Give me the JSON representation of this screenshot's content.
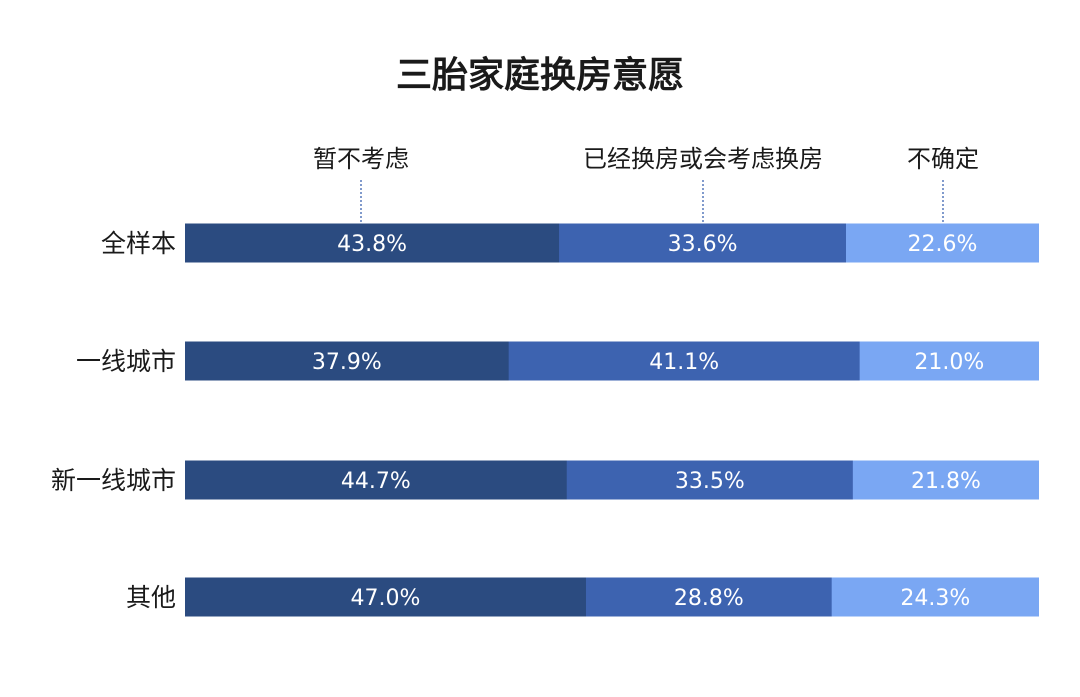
{
  "chart_data": {
    "type": "bar",
    "orientation": "horizontal",
    "stacked": true,
    "title": "三胎家庭换房意愿",
    "categories": [
      "全样本",
      "一线城市",
      "新一线城市",
      "其他"
    ],
    "series": [
      {
        "name": "暂不考虑",
        "values": [
          43.8,
          37.9,
          44.7,
          47.0
        ],
        "labels": [
          "43.8%",
          "37.9%",
          "44.7%",
          "47.0%"
        ],
        "color": "#2b4b80"
      },
      {
        "name": "已经换房或会考虑换房",
        "values": [
          33.6,
          41.1,
          33.5,
          28.8
        ],
        "labels": [
          "33.6%",
          "41.1%",
          "33.5%",
          "28.8%"
        ],
        "color": "#3d63b0"
      },
      {
        "name": "不确定",
        "values": [
          22.6,
          21.0,
          21.8,
          24.3
        ],
        "labels": [
          "22.6%",
          "21.0%",
          "21.8%",
          "24.3%"
        ],
        "color": "#7aa7f3"
      }
    ],
    "legend": "top",
    "grid": false
  }
}
